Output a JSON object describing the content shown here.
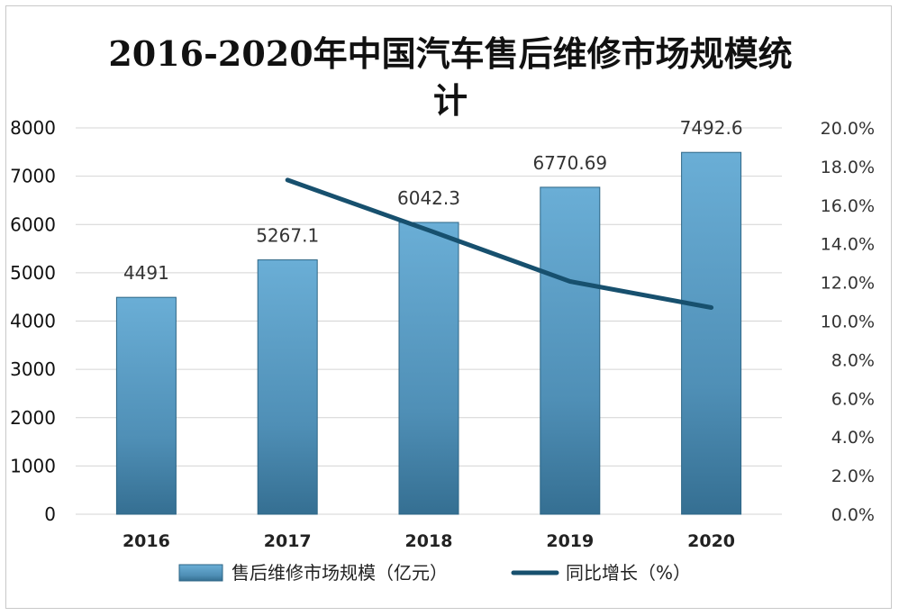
{
  "chart_data": {
    "type": "bar",
    "title": "2016-2020年中国汽车售后维修市场规模统计",
    "categories": [
      "2016",
      "2017",
      "2018",
      "2019",
      "2020"
    ],
    "series": [
      {
        "name": "售后维修市场规模（亿元）",
        "type": "bar",
        "axis": "left",
        "values": [
          4491,
          5267.1,
          6042.3,
          6770.69,
          7492.6
        ],
        "labels": [
          "4491",
          "5267.1",
          "6042.3",
          "6770.69",
          "7492.6"
        ],
        "color": "#5b9cc4"
      },
      {
        "name": "同比增长（%）",
        "type": "line",
        "axis": "right",
        "values": [
          null,
          17.3,
          14.7,
          12.05,
          10.7
        ],
        "color": "#17506e"
      }
    ],
    "y_left": {
      "min": 0,
      "max": 8000,
      "ticks": [
        "0",
        "1000",
        "2000",
        "3000",
        "4000",
        "5000",
        "6000",
        "7000",
        "8000"
      ]
    },
    "y_right": {
      "min": 0,
      "max": 20,
      "ticks": [
        "0.0%",
        "2.0%",
        "4.0%",
        "6.0%",
        "8.0%",
        "10.0%",
        "12.0%",
        "14.0%",
        "16.0%",
        "18.0%",
        "20.0%"
      ]
    },
    "grid": true,
    "legend_position": "bottom"
  }
}
